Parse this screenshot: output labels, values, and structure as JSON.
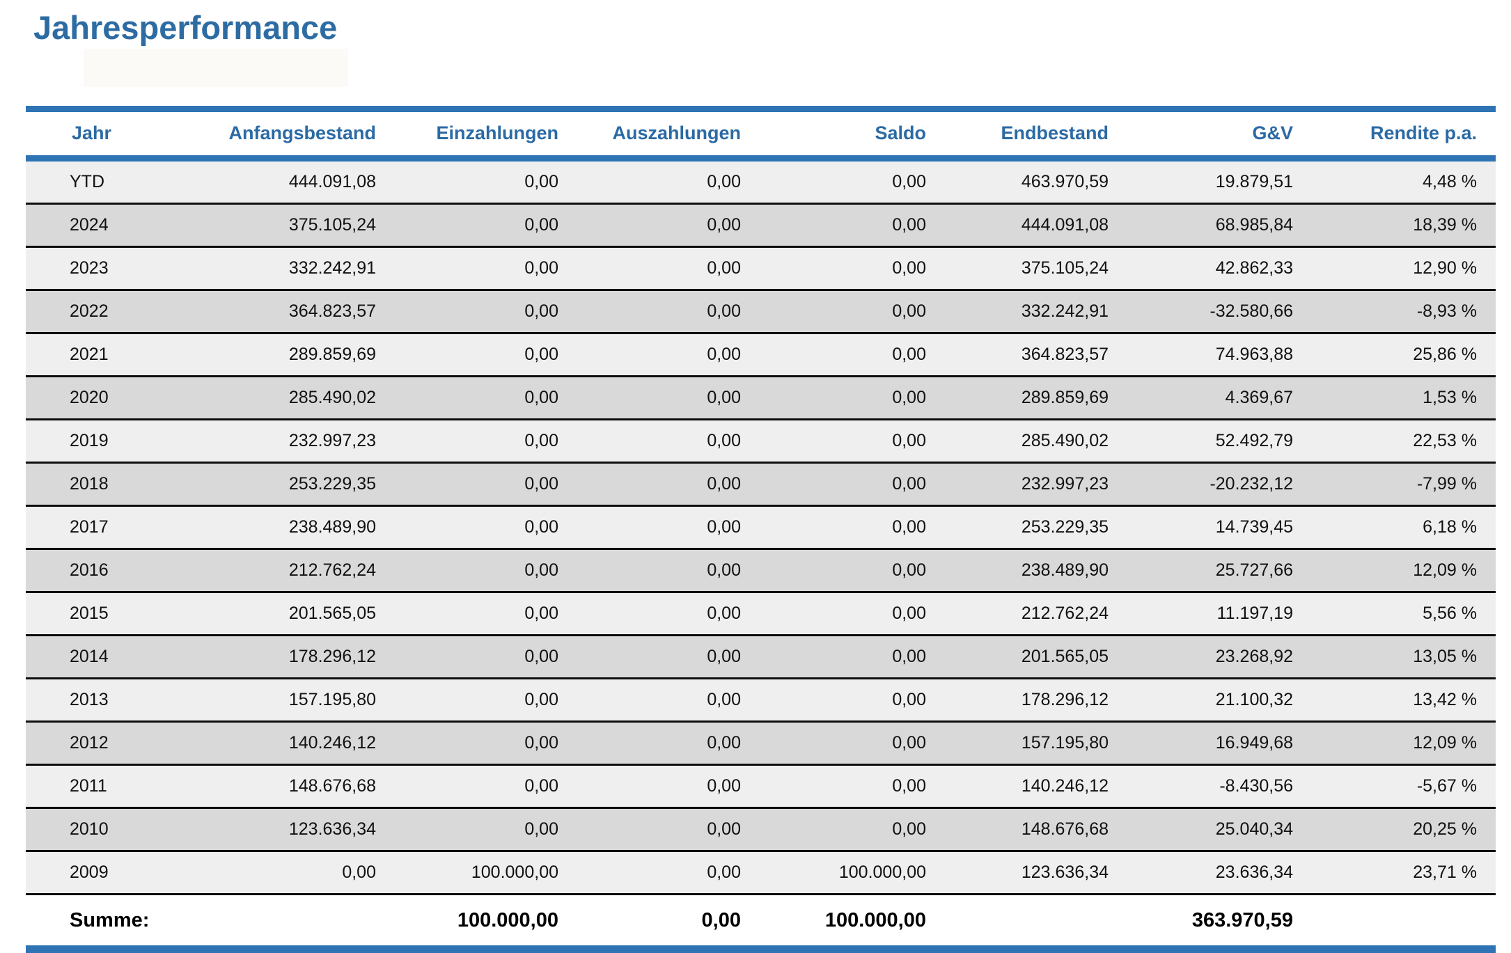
{
  "page": {
    "title": "Jahresperformance"
  },
  "colors": {
    "accent_blue": "#2e74b5",
    "title_blue": "#2d6ca3",
    "row_light": "#efefef",
    "row_dark": "#d9d9d9",
    "separator_black": "#0d0d0d"
  },
  "table": {
    "columns": [
      {
        "key": "jahr",
        "label": "Jahr",
        "align": "left"
      },
      {
        "key": "anfangsbestand",
        "label": "Anfangsbestand",
        "align": "right"
      },
      {
        "key": "einzahlungen",
        "label": "Einzahlungen",
        "align": "right"
      },
      {
        "key": "auszahlungen",
        "label": "Auszahlungen",
        "align": "right"
      },
      {
        "key": "saldo",
        "label": "Saldo",
        "align": "right"
      },
      {
        "key": "endbestand",
        "label": "Endbestand",
        "align": "right"
      },
      {
        "key": "guv",
        "label": "G&V",
        "align": "right"
      },
      {
        "key": "rendite",
        "label": "Rendite p.a.",
        "align": "right"
      }
    ],
    "rows": [
      [
        "YTD",
        "444.091,08",
        "0,00",
        "0,00",
        "0,00",
        "463.970,59",
        "19.879,51",
        "4,48 %"
      ],
      [
        "2024",
        "375.105,24",
        "0,00",
        "0,00",
        "0,00",
        "444.091,08",
        "68.985,84",
        "18,39 %"
      ],
      [
        "2023",
        "332.242,91",
        "0,00",
        "0,00",
        "0,00",
        "375.105,24",
        "42.862,33",
        "12,90 %"
      ],
      [
        "2022",
        "364.823,57",
        "0,00",
        "0,00",
        "0,00",
        "332.242,91",
        "-32.580,66",
        "-8,93 %"
      ],
      [
        "2021",
        "289.859,69",
        "0,00",
        "0,00",
        "0,00",
        "364.823,57",
        "74.963,88",
        "25,86 %"
      ],
      [
        "2020",
        "285.490,02",
        "0,00",
        "0,00",
        "0,00",
        "289.859,69",
        "4.369,67",
        "1,53 %"
      ],
      [
        "2019",
        "232.997,23",
        "0,00",
        "0,00",
        "0,00",
        "285.490,02",
        "52.492,79",
        "22,53 %"
      ],
      [
        "2018",
        "253.229,35",
        "0,00",
        "0,00",
        "0,00",
        "232.997,23",
        "-20.232,12",
        "-7,99 %"
      ],
      [
        "2017",
        "238.489,90",
        "0,00",
        "0,00",
        "0,00",
        "253.229,35",
        "14.739,45",
        "6,18 %"
      ],
      [
        "2016",
        "212.762,24",
        "0,00",
        "0,00",
        "0,00",
        "238.489,90",
        "25.727,66",
        "12,09 %"
      ],
      [
        "2015",
        "201.565,05",
        "0,00",
        "0,00",
        "0,00",
        "212.762,24",
        "11.197,19",
        "5,56 %"
      ],
      [
        "2014",
        "178.296,12",
        "0,00",
        "0,00",
        "0,00",
        "201.565,05",
        "23.268,92",
        "13,05 %"
      ],
      [
        "2013",
        "157.195,80",
        "0,00",
        "0,00",
        "0,00",
        "178.296,12",
        "21.100,32",
        "13,42 %"
      ],
      [
        "2012",
        "140.246,12",
        "0,00",
        "0,00",
        "0,00",
        "157.195,80",
        "16.949,68",
        "12,09 %"
      ],
      [
        "2011",
        "148.676,68",
        "0,00",
        "0,00",
        "0,00",
        "140.246,12",
        "-8.430,56",
        "-5,67 %"
      ],
      [
        "2010",
        "123.636,34",
        "0,00",
        "0,00",
        "0,00",
        "148.676,68",
        "25.040,34",
        "20,25 %"
      ],
      [
        "2009",
        "0,00",
        "100.000,00",
        "0,00",
        "100.000,00",
        "123.636,34",
        "23.636,34",
        "23,71 %"
      ]
    ],
    "summary": {
      "label": "Summe:",
      "anfangsbestand": "",
      "einzahlungen": "100.000,00",
      "auszahlungen": "0,00",
      "saldo": "100.000,00",
      "endbestand": "",
      "guv": "363.970,59",
      "rendite": ""
    }
  }
}
